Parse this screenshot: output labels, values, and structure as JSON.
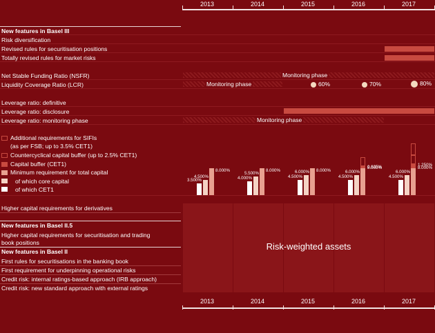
{
  "years": [
    "2013",
    "2014",
    "2015",
    "2016",
    "2017"
  ],
  "sections": {
    "basel3": {
      "title": "New features in Basel III",
      "items": [
        "Risk diversification",
        "Revised rules for securitisation positions",
        "Totally revised rules for market risks"
      ]
    },
    "liquidity": {
      "nsfr": "Net Stable Funding Ratio (NSFR)",
      "lcr": "Liquidity Coverage Ratio (LCR)",
      "nsfr_phase": "Monitoring phase",
      "lcr_phase": "Monitoring phase",
      "lcr_levels": [
        "60%",
        "70%",
        "80%"
      ]
    },
    "leverage": {
      "definitive": "Leverage ratio: definitive",
      "disclosure": "Leverage ratio: disclosure",
      "monitoring": "Leverage ratio: monitoring phase",
      "monitoring_phase": "Monitoring phase"
    },
    "capital_legend": {
      "sifi": "Additional requirements for SIFIs",
      "sifi2": "(as per FSB; up to 3.5% CET1)",
      "countercyclical": "Countercyclical capital buffer (up to 2.5% CET1)",
      "buffer": "Capital buffer (CET1)",
      "min_total": "Minimum requirement for total capital",
      "core": "of which core capital",
      "cet1": "of which CET1"
    },
    "derivatives": "Higher capital requirements for derivatives",
    "basel25": {
      "title": "New features in Basel II.5",
      "items": [
        "Higher capital requirements for securitisation and trading",
        "book positions"
      ]
    },
    "basel2": {
      "title": "New features in Basel II",
      "items": [
        "First rules for securitisations in the banking book",
        "First requirement for underpinning operational risks",
        "Credit risk: internal ratings-based approach (IRB approach)",
        "Credit risk: new standard approach with external ratings"
      ]
    },
    "rwa": "Risk-weighted assets"
  },
  "colors": {
    "background": "#7a0a10",
    "cet1": "#ffffff",
    "core": "#f4d2c4",
    "total": "#e8a090",
    "buffer": "#c84a40",
    "rwa_block": "#8a1519"
  },
  "capital_bars": [
    {
      "year": "2013",
      "cet1": 3.5,
      "core": 4.5,
      "total": 8.0,
      "buffer": 0,
      "labels": [
        "3.500%",
        "4.500%",
        "8.000%"
      ]
    },
    {
      "year": "2014",
      "cet1": 4.0,
      "core": 5.5,
      "total": 8.0,
      "buffer": 0,
      "labels": [
        "4.000%",
        "5.500%",
        "8.000%"
      ]
    },
    {
      "year": "2015",
      "cet1": 4.5,
      "core": 6.0,
      "total": 8.0,
      "buffer": 0,
      "labels": [
        "4.500%",
        "6.000%",
        "8.000%"
      ]
    },
    {
      "year": "2016",
      "cet1": 4.5,
      "core": 6.0,
      "total": 8.0,
      "buffer": 0.625,
      "labels": [
        "4.500%",
        "6.000%",
        "0.625%",
        "8.000%"
      ]
    },
    {
      "year": "2017",
      "cet1": 4.5,
      "core": 6.0,
      "total": 8.0,
      "buffer": 1.25,
      "labels": [
        "4.500%",
        "6.000%",
        "1.250%",
        "8.000%"
      ]
    }
  ]
}
